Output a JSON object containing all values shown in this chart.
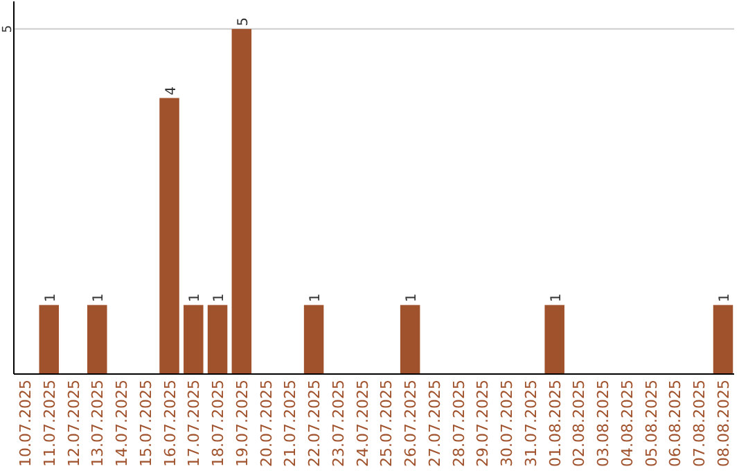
{
  "chart_data": {
    "type": "bar",
    "categories": [
      "10.07.2025",
      "11.07.2025",
      "12.07.2025",
      "13.07.2025",
      "14.07.2025",
      "15.07.2025",
      "16.07.2025",
      "17.07.2025",
      "18.07.2025",
      "19.07.2025",
      "20.07.2025",
      "21.07.2025",
      "22.07.2025",
      "23.07.2025",
      "24.07.2025",
      "25.07.2025",
      "26.07.2025",
      "27.07.2025",
      "28.07.2025",
      "29.07.2025",
      "30.07.2025",
      "31.07.2025",
      "01.08.2025",
      "02.08.2025",
      "03.08.2025",
      "04.08.2025",
      "05.08.2025",
      "06.08.2025",
      "07.08.2025",
      "08.08.2025"
    ],
    "values": [
      0,
      1,
      0,
      1,
      0,
      0,
      4,
      1,
      1,
      5,
      0,
      0,
      1,
      0,
      0,
      0,
      1,
      0,
      0,
      0,
      0,
      0,
      1,
      0,
      0,
      0,
      0,
      0,
      0,
      1
    ],
    "value_labels": [
      null,
      "1",
      null,
      "1",
      null,
      null,
      "4",
      "1",
      "1",
      "5",
      null,
      null,
      "1",
      null,
      null,
      null,
      "1",
      null,
      null,
      null,
      null,
      null,
      "1",
      null,
      null,
      null,
      null,
      null,
      null,
      "1"
    ],
    "color": "#a0522d",
    "ylim": [
      0,
      5.4
    ],
    "yticks": [
      5
    ],
    "grid": "y"
  }
}
